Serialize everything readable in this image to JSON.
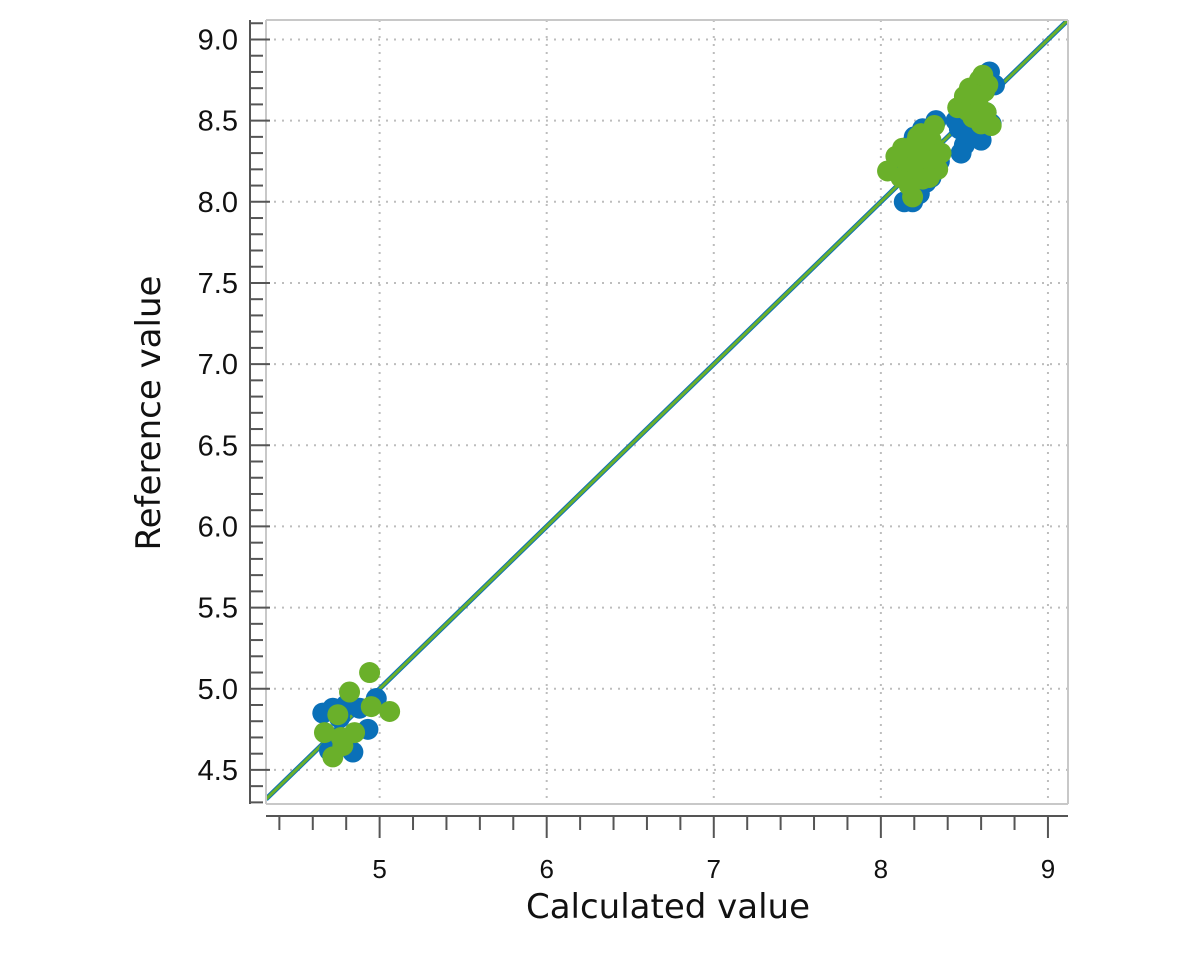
{
  "chart_data": {
    "type": "scatter",
    "xlabel": "Calculated value",
    "ylabel": "Reference value",
    "xlim": [
      4.32,
      9.12
    ],
    "ylim": [
      4.29,
      9.12
    ],
    "x_ticks": [
      5,
      6,
      7,
      8,
      9
    ],
    "x_tick_labels": [
      "5",
      "6",
      "7",
      "8",
      "9"
    ],
    "y_ticks": [
      4.5,
      5.0,
      5.5,
      6.0,
      6.5,
      7.0,
      7.5,
      8.0,
      8.5,
      9.0
    ],
    "y_tick_labels": [
      "4.5",
      "5.0",
      "5.5",
      "6.0",
      "6.5",
      "7.0",
      "7.5",
      "8.0",
      "8.5",
      "9.0"
    ],
    "x_minor_step": 0.2,
    "y_minor_step": 0.1,
    "grid": true,
    "legend": "none",
    "colors": {
      "series_blue": "#0a70b8",
      "series_green": "#6ab02a",
      "grid": "#bdbdbd",
      "axis": "#555555",
      "frame": "#c8c8c8"
    },
    "lines": [
      {
        "color": "#0a70b8",
        "slope": 1.0,
        "intercept": 0.0
      },
      {
        "color": "#6ab02a",
        "slope": 1.0,
        "intercept": 0.0
      }
    ],
    "series": [
      {
        "color": "#0a70b8",
        "points": [
          [
            4.66,
            4.85
          ],
          [
            4.72,
            4.88
          ],
          [
            4.76,
            4.82
          ],
          [
            4.7,
            4.62
          ],
          [
            4.84,
            4.61
          ],
          [
            4.93,
            4.75
          ],
          [
            4.98,
            4.94
          ],
          [
            4.8,
            4.9
          ],
          [
            4.74,
            4.7
          ],
          [
            4.88,
            4.88
          ],
          [
            8.13,
            8.3
          ],
          [
            8.15,
            8.22
          ],
          [
            8.18,
            8.35
          ],
          [
            8.2,
            8.4
          ],
          [
            8.22,
            8.28
          ],
          [
            8.25,
            8.45
          ],
          [
            8.14,
            8.0
          ],
          [
            8.19,
            8.0
          ],
          [
            8.21,
            8.08
          ],
          [
            8.27,
            8.12
          ],
          [
            8.3,
            8.15
          ],
          [
            8.33,
            8.5
          ],
          [
            8.28,
            8.38
          ],
          [
            8.24,
            8.18
          ],
          [
            8.35,
            8.25
          ],
          [
            8.16,
            8.14
          ],
          [
            8.31,
            8.3
          ],
          [
            8.12,
            8.2
          ],
          [
            8.23,
            8.05
          ],
          [
            8.29,
            8.44
          ],
          [
            8.47,
            8.45
          ],
          [
            8.5,
            8.35
          ],
          [
            8.48,
            8.3
          ],
          [
            8.52,
            8.55
          ],
          [
            8.56,
            8.45
          ],
          [
            8.6,
            8.38
          ],
          [
            8.58,
            8.65
          ],
          [
            8.62,
            8.7
          ],
          [
            8.65,
            8.8
          ],
          [
            8.68,
            8.72
          ],
          [
            8.54,
            8.6
          ],
          [
            8.45,
            8.5
          ],
          [
            8.63,
            8.55
          ],
          [
            8.66,
            8.48
          ],
          [
            8.59,
            8.5
          ]
        ]
      },
      {
        "color": "#6ab02a",
        "points": [
          [
            4.67,
            4.73
          ],
          [
            4.72,
            4.58
          ],
          [
            4.75,
            4.84
          ],
          [
            4.78,
            4.65
          ],
          [
            4.82,
            4.98
          ],
          [
            4.85,
            4.73
          ],
          [
            4.94,
            5.1
          ],
          [
            4.95,
            4.89
          ],
          [
            5.06,
            4.86
          ],
          [
            4.77,
            4.7
          ],
          [
            8.04,
            8.19
          ],
          [
            8.09,
            8.28
          ],
          [
            8.12,
            8.15
          ],
          [
            8.15,
            8.25
          ],
          [
            8.17,
            8.1
          ],
          [
            8.19,
            8.03
          ],
          [
            8.2,
            8.35
          ],
          [
            8.22,
            8.2
          ],
          [
            8.24,
            8.42
          ],
          [
            8.26,
            8.3
          ],
          [
            8.28,
            8.25
          ],
          [
            8.3,
            8.38
          ],
          [
            8.32,
            8.47
          ],
          [
            8.34,
            8.2
          ],
          [
            8.36,
            8.3
          ],
          [
            8.18,
            8.3
          ],
          [
            8.25,
            8.14
          ],
          [
            8.13,
            8.33
          ],
          [
            8.22,
            8.4
          ],
          [
            8.29,
            8.15
          ],
          [
            8.46,
            8.58
          ],
          [
            8.5,
            8.65
          ],
          [
            8.53,
            8.7
          ],
          [
            8.55,
            8.52
          ],
          [
            8.57,
            8.6
          ],
          [
            8.59,
            8.75
          ],
          [
            8.6,
            8.48
          ],
          [
            8.62,
            8.68
          ],
          [
            8.63,
            8.55
          ],
          [
            8.66,
            8.47
          ],
          [
            8.58,
            8.62
          ],
          [
            8.64,
            8.72
          ],
          [
            8.52,
            8.56
          ],
          [
            8.61,
            8.78
          ],
          [
            8.56,
            8.66
          ]
        ]
      }
    ]
  }
}
